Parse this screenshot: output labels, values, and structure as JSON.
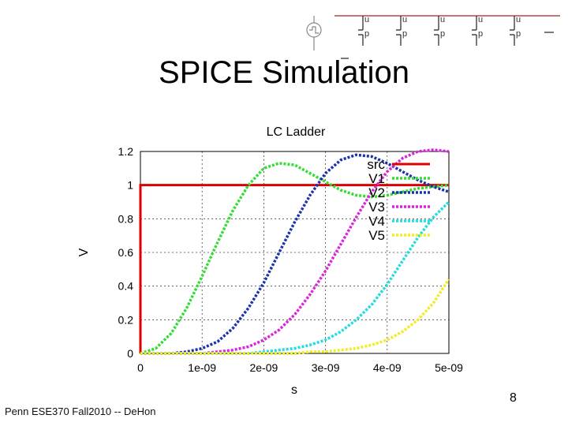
{
  "slide": {
    "title": "SPICE Simulation",
    "footer": "Penn ESE370 Fall2010 -- DeHon",
    "page_number": "8",
    "circuit_icon": "lc-ladder-schematic-icon"
  },
  "chart_data": {
    "type": "line",
    "title": "LC Ladder",
    "xlabel": "s",
    "ylabel": "V",
    "xlim": [
      0,
      5e-09
    ],
    "ylim": [
      0,
      1.2
    ],
    "x_ticks": [
      "0",
      "1e-09",
      "2e-09",
      "3e-09",
      "4e-09",
      "5e-09"
    ],
    "y_ticks": [
      "0",
      "0.2",
      "0.4",
      "0.6",
      "0.8",
      "1",
      "1.2"
    ],
    "grid": true,
    "legend_position": "top-right",
    "x": [
      0,
      2.5e-10,
      5e-10,
      7.5e-10,
      1e-09,
      1.25e-09,
      1.5e-09,
      1.75e-09,
      2e-09,
      2.25e-09,
      2.5e-09,
      2.75e-09,
      3e-09,
      3.25e-09,
      3.5e-09,
      3.75e-09,
      4e-09,
      4.25e-09,
      4.5e-09,
      4.75e-09,
      5e-09
    ],
    "series": [
      {
        "name": "src",
        "color": "#dd0000",
        "values": [
          0,
          1,
          1,
          1,
          1,
          1,
          1,
          1,
          1,
          1,
          1,
          1,
          1,
          1,
          1,
          1,
          1,
          1,
          1,
          1,
          1
        ]
      },
      {
        "name": "V1",
        "color": "#33dd33",
        "values": [
          0,
          0.03,
          0.12,
          0.27,
          0.46,
          0.66,
          0.85,
          1.0,
          1.1,
          1.13,
          1.12,
          1.07,
          1.02,
          0.97,
          0.94,
          0.93,
          0.94,
          0.96,
          0.98,
          0.99,
          1.0
        ]
      },
      {
        "name": "V2",
        "color": "#1a33aa",
        "values": [
          0,
          0,
          0,
          0.01,
          0.03,
          0.07,
          0.15,
          0.27,
          0.42,
          0.6,
          0.78,
          0.94,
          1.07,
          1.15,
          1.18,
          1.17,
          1.13,
          1.08,
          1.03,
          0.99,
          0.96
        ]
      },
      {
        "name": "V3",
        "color": "#dd22dd",
        "values": [
          0,
          0,
          0,
          0,
          0,
          0.01,
          0.02,
          0.04,
          0.08,
          0.14,
          0.23,
          0.35,
          0.49,
          0.65,
          0.81,
          0.96,
          1.08,
          1.16,
          1.2,
          1.21,
          1.2
        ]
      },
      {
        "name": "V4",
        "color": "#22dddd",
        "values": [
          0,
          0,
          0,
          0,
          0,
          0,
          0,
          0,
          0.01,
          0.02,
          0.03,
          0.05,
          0.08,
          0.13,
          0.2,
          0.29,
          0.41,
          0.55,
          0.69,
          0.81,
          0.9
        ]
      },
      {
        "name": "V5",
        "color": "#eeee22",
        "values": [
          0,
          0,
          0,
          0,
          0,
          0,
          0,
          0,
          0,
          0,
          0,
          0.01,
          0.01,
          0.02,
          0.03,
          0.05,
          0.08,
          0.13,
          0.2,
          0.3,
          0.44
        ]
      }
    ]
  }
}
